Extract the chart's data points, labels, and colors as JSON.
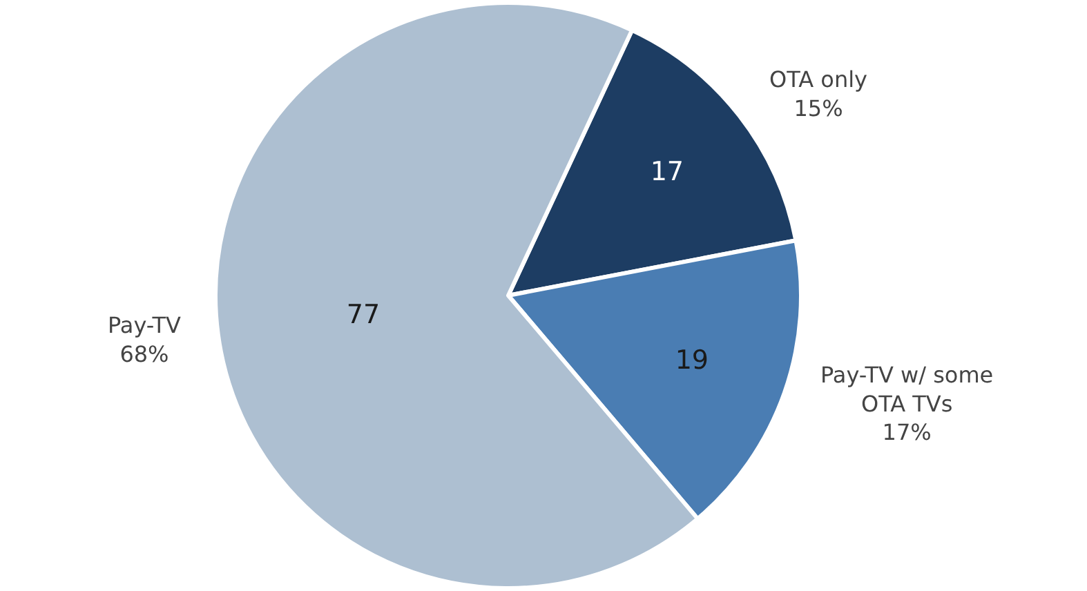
{
  "chart_data": {
    "type": "pie",
    "categories": [
      "OTA only",
      "Pay-TV w/ some OTA TVs",
      "Pay-TV"
    ],
    "values": [
      17,
      19,
      77
    ],
    "colors": [
      "#1d3d63",
      "#4a7db3",
      "#adbfd1"
    ],
    "data_labels": true,
    "annotations": [
      "15%",
      "17%",
      "68%"
    ],
    "legend": false
  }
}
